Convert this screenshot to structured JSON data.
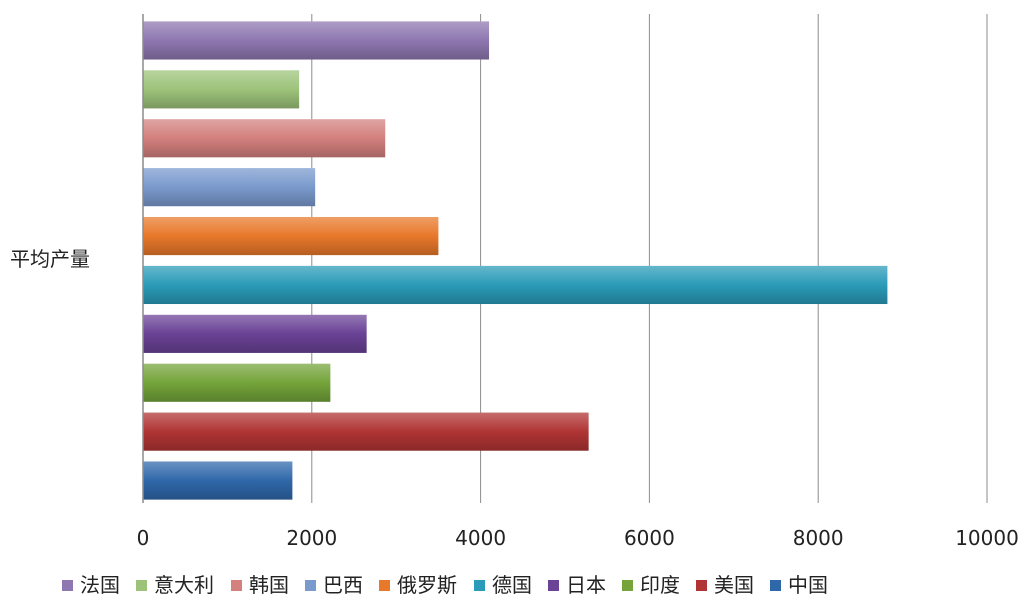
{
  "chart_data": {
    "type": "bar",
    "orientation": "horizontal",
    "categories": [
      "平均产量"
    ],
    "series": [
      {
        "name": "法国",
        "values": [
          4100
        ],
        "color": "#8e77b0"
      },
      {
        "name": "意大利",
        "values": [
          1850
        ],
        "color": "#9dc37a"
      },
      {
        "name": "韩国",
        "values": [
          2870
        ],
        "color": "#d3807e"
      },
      {
        "name": "巴西",
        "values": [
          2040
        ],
        "color": "#7a9acd"
      },
      {
        "name": "俄罗斯",
        "values": [
          3500
        ],
        "color": "#e8782a"
      },
      {
        "name": "德国",
        "values": [
          8820
        ],
        "color": "#2a9bb8"
      },
      {
        "name": "日本",
        "values": [
          2650
        ],
        "color": "#6a4296"
      },
      {
        "name": "印度",
        "values": [
          2220
        ],
        "color": "#74a43a"
      },
      {
        "name": "美国",
        "values": [
          5280
        ],
        "color": "#b03434"
      },
      {
        "name": "中国",
        "values": [
          1770
        ],
        "color": "#2f68aa"
      }
    ],
    "xlim": [
      0,
      10000
    ],
    "xticks": [
      "0",
      "2000",
      "4000",
      "6000",
      "8000",
      "10000"
    ],
    "grid": true,
    "legend_position": "bottom"
  }
}
